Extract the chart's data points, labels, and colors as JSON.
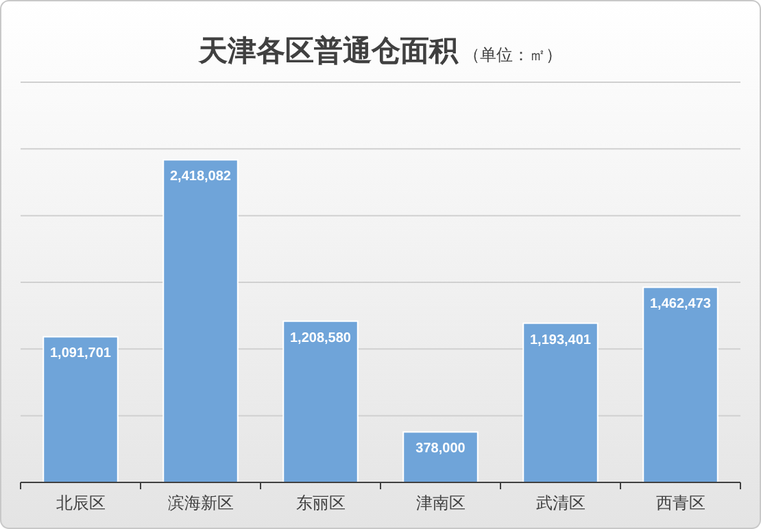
{
  "chart_data": {
    "type": "bar",
    "title": "天津各区普通仓面积",
    "subtitle": "（单位：㎡）",
    "categories": [
      "北辰区",
      "滨海新区",
      "东丽区",
      "津南区",
      "武清区",
      "西青区"
    ],
    "values": [
      1091701,
      2418082,
      1208580,
      378000,
      1193401,
      1462473
    ],
    "color": "#6fa4d9",
    "value_labels": [
      "1,091,701",
      "2,418,082",
      "1,208,580",
      "378,000",
      "1,193,401",
      "1,462,473"
    ],
    "grid": "y",
    "tick_labels": "x"
  }
}
